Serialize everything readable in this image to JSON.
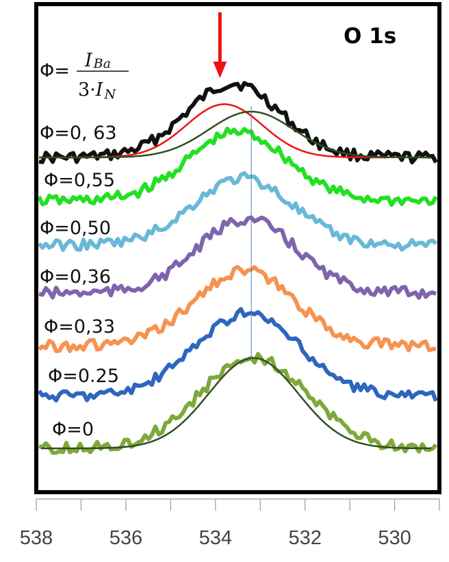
{
  "chart_data": {
    "type": "line",
    "title": "O 1s",
    "x_axis": {
      "range": [
        538,
        529
      ],
      "reversed": true,
      "ticks": [
        538,
        536,
        534,
        532,
        530
      ],
      "tick_labels": [
        "538",
        "536",
        "534",
        "532",
        "530"
      ]
    },
    "formula": {
      "prefix": "Φ=",
      "numerator": "I",
      "numerator_sub": "Ba",
      "denominator_coef": "3·",
      "denominator": "I",
      "denominator_sub": "N"
    },
    "arrow_marker": {
      "x": 533.9,
      "color": "#ee1111"
    },
    "reference_line": {
      "x": 533.2,
      "color": "#4a7fc0"
    },
    "series": [
      {
        "name": "Φ=0, 63",
        "color": "#111111",
        "peak_x": 533.6,
        "sigma": 1.05,
        "amplitude": 1.0,
        "baseline_slope": 0.0
      },
      {
        "name": "Φ=0,55",
        "color": "#22e022",
        "peak_x": 533.5,
        "sigma": 1.1,
        "amplitude": 1.0,
        "baseline_slope": 0.0
      },
      {
        "name": "Φ=0,50",
        "color": "#6ab8d8",
        "peak_x": 533.4,
        "sigma": 1.1,
        "amplitude": 1.0,
        "baseline_slope": 0.0
      },
      {
        "name": "Φ=0,36",
        "color": "#7e64ad",
        "peak_x": 533.3,
        "sigma": 1.1,
        "amplitude": 1.0,
        "baseline_slope": 0.0
      },
      {
        "name": "Φ=0,33",
        "color": "#f79250",
        "peak_x": 533.35,
        "sigma": 1.1,
        "amplitude": 1.0,
        "baseline_slope": 0.0
      },
      {
        "name": "Φ=0.25",
        "color": "#2e66bf",
        "peak_x": 533.3,
        "sigma": 1.15,
        "amplitude": 1.0,
        "baseline_slope": 0.0
      },
      {
        "name": "Φ=0",
        "color": "#7fa83a",
        "peak_x": 533.15,
        "sigma": 1.2,
        "amplitude": 1.0,
        "baseline_slope": 0.0
      }
    ],
    "fits": [
      {
        "on_series": "Φ=0, 63",
        "color": "#ee1111",
        "peak_x": 533.8,
        "sigma": 0.85,
        "amplitude": 0.72
      },
      {
        "on_series": "Φ=0, 63",
        "color": "#2f4f1f",
        "peak_x": 533.2,
        "sigma": 0.95,
        "amplitude": 0.62
      },
      {
        "on_series": "Φ=0",
        "color": "#2f4f1f",
        "peak_x": 533.15,
        "sigma": 1.0,
        "amplitude": 1.0
      }
    ],
    "grid": false,
    "legend": "inline-labels-left"
  }
}
